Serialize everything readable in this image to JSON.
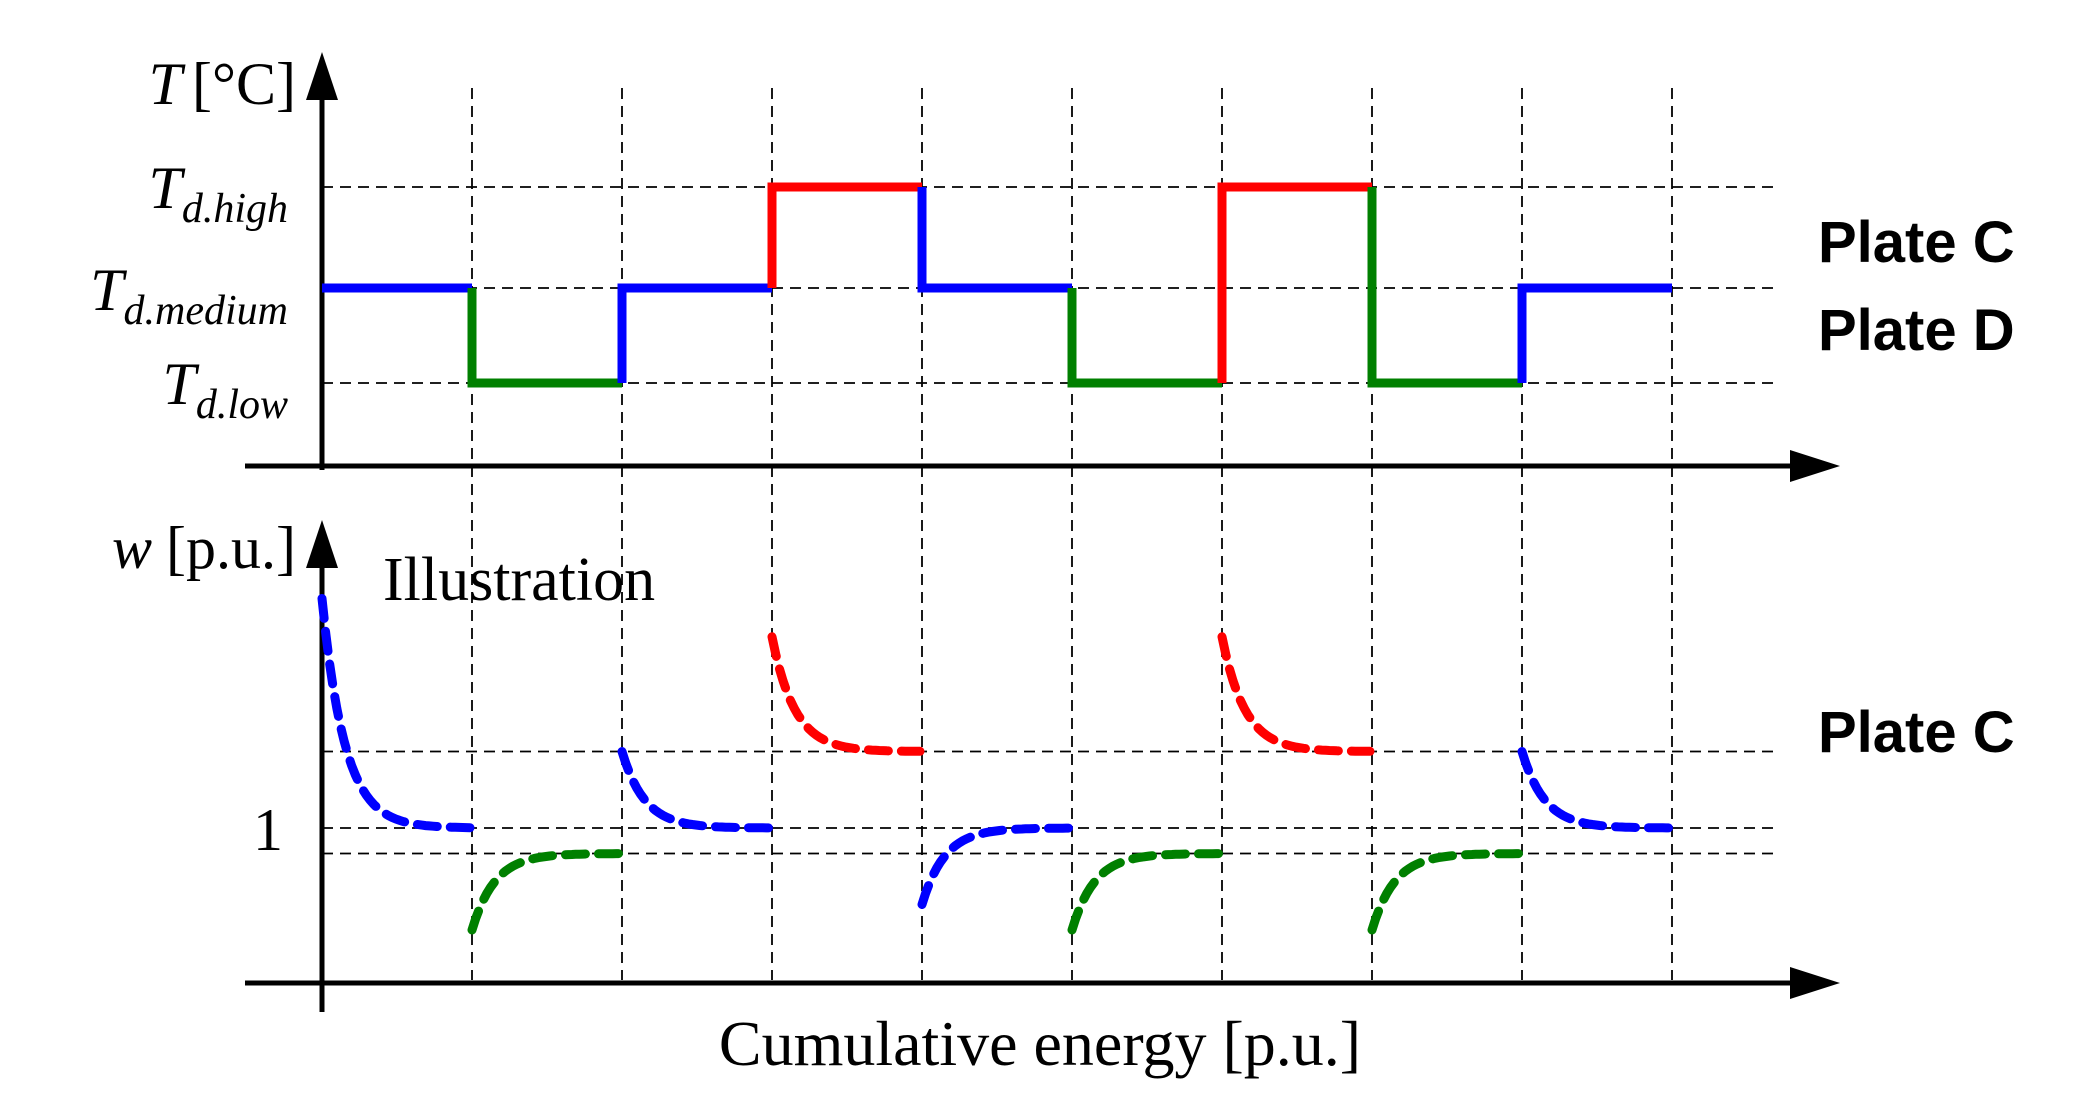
{
  "top_panel": {
    "axis_label_var": "T",
    "axis_label_unit": "[°C]",
    "levels": [
      {
        "main": "T",
        "sub": "d.high"
      },
      {
        "main": "T",
        "sub": "d.medium"
      },
      {
        "main": "T",
        "sub": "d.low"
      }
    ],
    "plate_labels": [
      "Plate C",
      "Plate D"
    ]
  },
  "bottom_panel": {
    "axis_label_var": "w",
    "axis_label_unit": "[p.u.]",
    "annotation": "Illustration",
    "tick_label": "1",
    "plate_label": "Plate C"
  },
  "x_axis_label": "Cumulative energy [p.u.]",
  "colors": {
    "high": "#ff0000",
    "medium": "#0000ff",
    "low": "#008000",
    "axis": "#000000"
  },
  "chart_data": {
    "type": "line",
    "n_intervals": 9,
    "temperature_sequence": [
      "medium",
      "low",
      "medium",
      "high",
      "medium",
      "low",
      "high",
      "low",
      "medium"
    ],
    "w_levels": {
      "high": 1.3,
      "medium": 1.0,
      "low": 0.9
    },
    "w_start": {
      "high": 1.75,
      "medium_after_low": 1.3,
      "medium_after_high": 0.7,
      "medium_initial": 1.9,
      "low": 0.6
    },
    "plates": [
      "Plate C",
      "Plate D"
    ],
    "xlabel": "Cumulative energy [p.u.]",
    "ylabel_top": "T [°C]",
    "ylabel_bottom": "w [p.u.]"
  }
}
